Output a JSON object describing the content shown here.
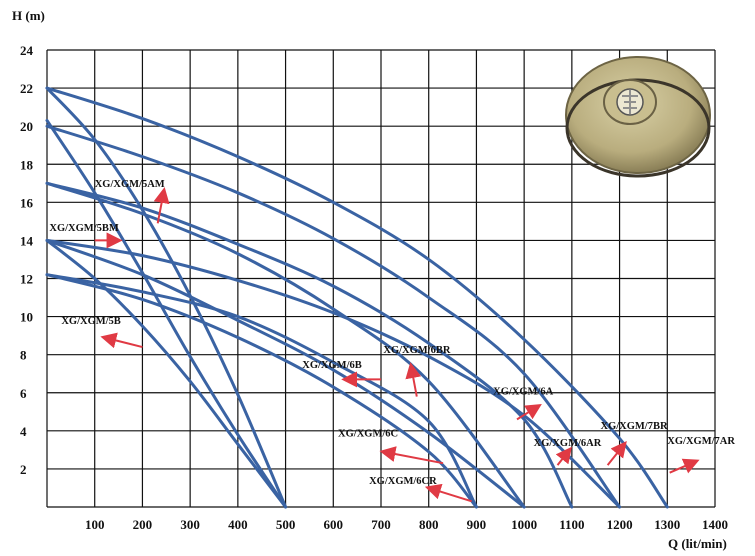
{
  "chart_data": {
    "type": "line",
    "xlabel": "Q (lit/min)",
    "ylabel": "H (m)",
    "xlim": [
      0,
      1400
    ],
    "ylim": [
      0,
      24
    ],
    "x_ticks": [
      100,
      200,
      300,
      400,
      500,
      600,
      700,
      800,
      900,
      1000,
      1100,
      1200,
      1300,
      1400
    ],
    "y_ticks": [
      2,
      4,
      6,
      8,
      10,
      12,
      14,
      16,
      18,
      20,
      22,
      24
    ],
    "grid": true,
    "line_color": "#3a63a3",
    "arrow_color": "#e03a44",
    "series": [
      {
        "name": "XG/XGM/5B",
        "x": [
          0,
          100,
          200,
          300,
          400,
          500
        ],
        "y": [
          14.0,
          12.0,
          9.5,
          6.6,
          3.3,
          0
        ]
      },
      {
        "name": "XG/XGM/5BM",
        "x": [
          0,
          100,
          200,
          300,
          400,
          500
        ],
        "y": [
          20.3,
          16.5,
          12.3,
          7.9,
          3.8,
          0
        ]
      },
      {
        "name": "XG/XGM/5AM",
        "x": [
          0,
          100,
          200,
          300,
          400,
          500
        ],
        "y": [
          22.0,
          19.3,
          15.6,
          11.1,
          5.9,
          0
        ]
      },
      {
        "name": "XG/XGM/6CR",
        "x": [
          0,
          200,
          400,
          600,
          800,
          900
        ],
        "y": [
          12.2,
          10.9,
          8.9,
          6.3,
          2.9,
          0
        ]
      },
      {
        "name": "XG/XGM/6C",
        "x": [
          0,
          200,
          400,
          600,
          800,
          1000
        ],
        "y": [
          14.0,
          12.2,
          9.8,
          7.2,
          3.9,
          0
        ]
      },
      {
        "name": "XG/XGM/6B",
        "x": [
          0,
          200,
          400,
          600,
          800,
          900
        ],
        "y": [
          12.2,
          11.3,
          10.0,
          7.6,
          4.5,
          0
        ]
      },
      {
        "name": "XG/XGM/6BR",
        "x": [
          0,
          200,
          400,
          600,
          800,
          1000
        ],
        "y": [
          17.0,
          15.4,
          13.3,
          10.4,
          6.6,
          0
        ]
      },
      {
        "name": "XG/XGM/6A",
        "x": [
          0,
          200,
          400,
          600,
          800,
          1000,
          1100
        ],
        "y": [
          17.0,
          15.7,
          13.8,
          11.6,
          8.6,
          4.6,
          0
        ]
      },
      {
        "name": "XG/XGM/6AR",
        "x": [
          0,
          200,
          400,
          600,
          800,
          1000,
          1200
        ],
        "y": [
          14.0,
          13.2,
          11.9,
          10.2,
          7.9,
          4.8,
          0
        ]
      },
      {
        "name": "XG/XGM/7BR",
        "x": [
          0,
          200,
          400,
          600,
          800,
          1000,
          1200
        ],
        "y": [
          20.0,
          18.4,
          16.5,
          14.1,
          11.0,
          7.0,
          0
        ]
      },
      {
        "name": "XG/XGM/7AR",
        "x": [
          0,
          200,
          400,
          600,
          800,
          1000,
          1200,
          1300
        ],
        "y": [
          22.0,
          20.4,
          18.4,
          16.0,
          13.0,
          8.8,
          3.6,
          0
        ]
      }
    ],
    "annotations": [
      {
        "text": "XG/XGM/5AM",
        "tx": 100,
        "ty": 16.8,
        "ax1": 232,
        "ay1": 14.9,
        "ax2": 245,
        "ay2": 16.6
      },
      {
        "text": "XG/XGM/5BM",
        "tx": 5,
        "ty": 14.5,
        "ax1": 100,
        "ay1": 14.0,
        "ax2": 150,
        "ay2": 14.0
      },
      {
        "text": "XG/XGM/5B",
        "tx": 30,
        "ty": 9.6,
        "ax1": 200,
        "ay1": 8.4,
        "ax2": 120,
        "ay2": 8.9
      },
      {
        "text": "XG/XGM/6B",
        "tx": 535,
        "ty": 7.3,
        "ax1": 700,
        "ay1": 6.7,
        "ax2": 625,
        "ay2": 6.7
      },
      {
        "text": "XG/XGM/6BR",
        "tx": 705,
        "ty": 8.1,
        "ax1": 775,
        "ay1": 5.8,
        "ax2": 763,
        "ay2": 7.4
      },
      {
        "text": "XG/XGM/6A",
        "tx": 935,
        "ty": 5.9,
        "ax1": 985,
        "ay1": 4.6,
        "ax2": 1030,
        "ay2": 5.3
      },
      {
        "text": "XG/XGM/6AR",
        "tx": 1020,
        "ty": 3.2,
        "ax1": 1070,
        "ay1": 2.2,
        "ax2": 1095,
        "ay2": 3.0
      },
      {
        "text": "XG/XGM/7BR",
        "tx": 1160,
        "ty": 4.1,
        "ax1": 1175,
        "ay1": 2.2,
        "ax2": 1210,
        "ay2": 3.3
      },
      {
        "text": "XG/XGM/6C",
        "tx": 610,
        "ty": 3.7,
        "ax1": 830,
        "ay1": 2.3,
        "ax2": 705,
        "ay2": 2.9
      },
      {
        "text": "XG/XGM/6CR",
        "tx": 675,
        "ty": 1.2,
        "ax1": 890,
        "ay1": 0.3,
        "ax2": 800,
        "ay2": 1.0
      },
      {
        "text": "XG/XGM/7AR",
        "tx": 1300,
        "ty": 3.3,
        "ax1": 1305,
        "ay1": 1.8,
        "ax2": 1360,
        "ay2": 2.4
      }
    ]
  }
}
